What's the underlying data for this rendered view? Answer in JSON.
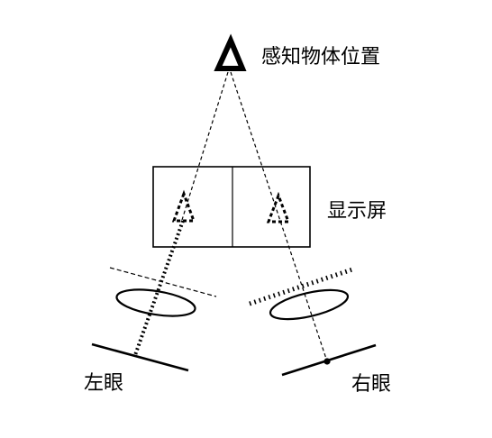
{
  "labels": {
    "perceived_object": "感知物体位置",
    "display_screen": "显示屏",
    "left_eye": "左眼",
    "right_eye": "右眼"
  }
}
